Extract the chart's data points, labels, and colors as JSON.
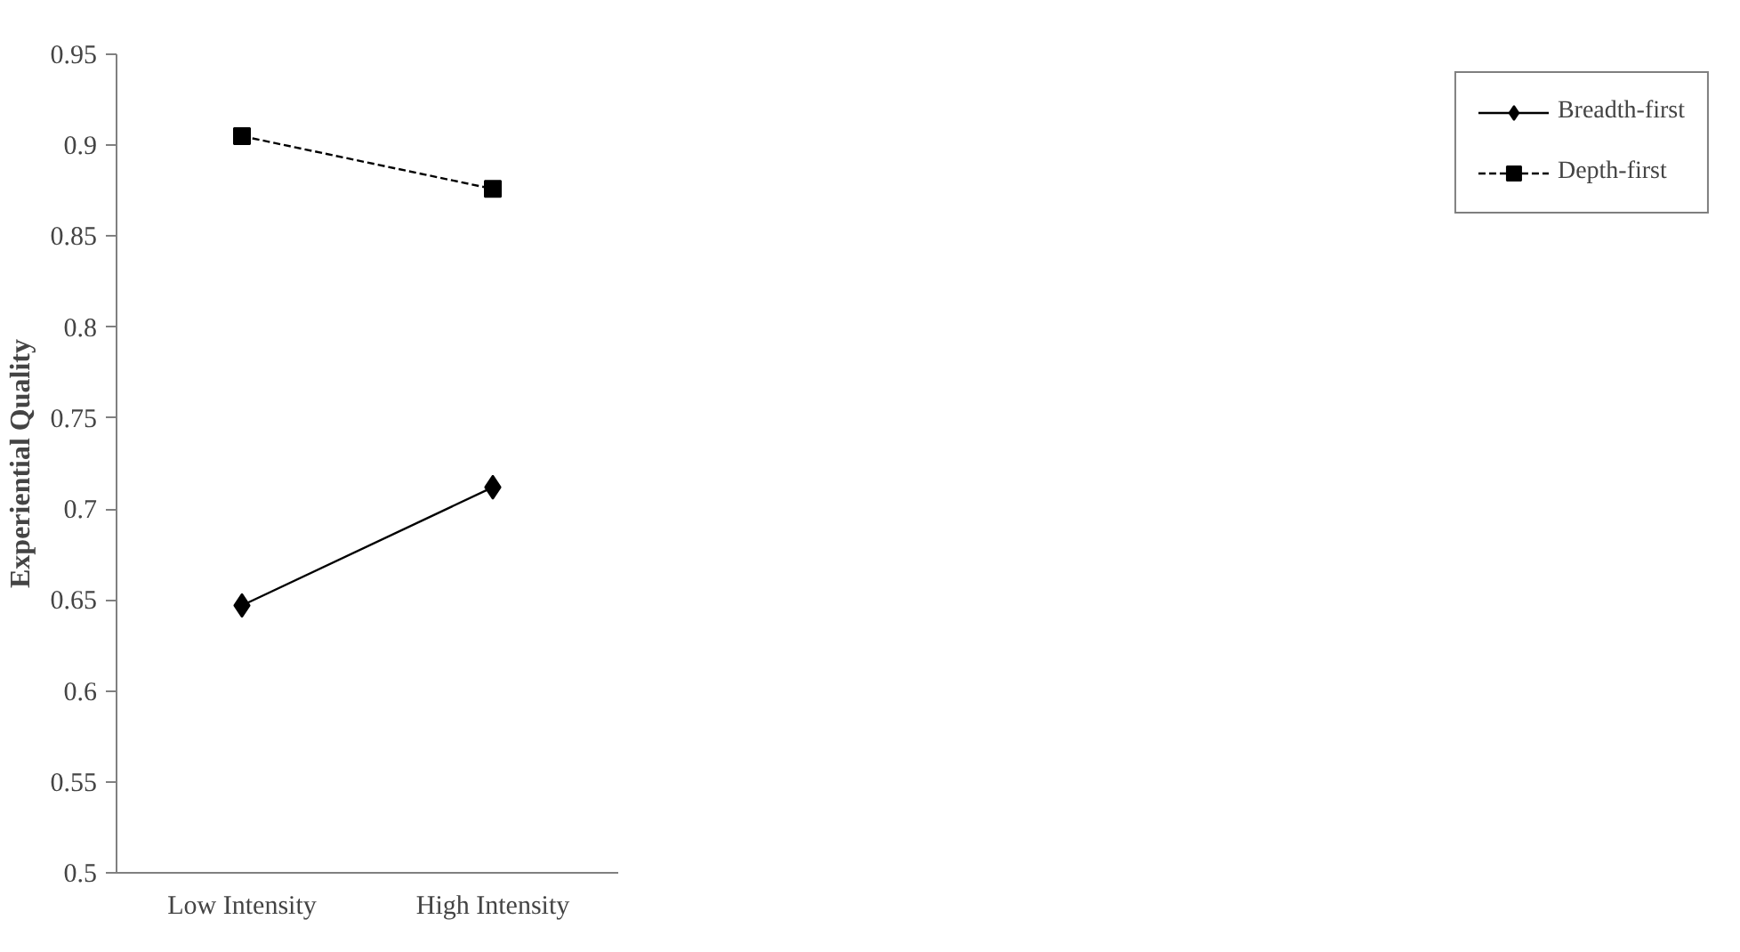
{
  "chart_data": {
    "type": "line",
    "ylabel": "Experiential Quality",
    "categories": [
      "Low Intensity",
      "High Intensity"
    ],
    "series": [
      {
        "name": "Breadth-first",
        "color": "#000000",
        "values": [
          0.647,
          0.712
        ],
        "marker": "diamond",
        "line_style": "solid"
      },
      {
        "name": "Depth-first",
        "color": "#000000",
        "values": [
          0.905,
          0.876
        ],
        "marker": "square",
        "line_style": "dashed"
      }
    ],
    "ylim": [
      0.5,
      0.95
    ],
    "yticks": [
      0.5,
      0.55,
      0.6,
      0.65,
      0.7,
      0.75,
      0.8,
      0.85,
      0.9,
      0.95
    ],
    "grid": false,
    "legend": "right"
  }
}
